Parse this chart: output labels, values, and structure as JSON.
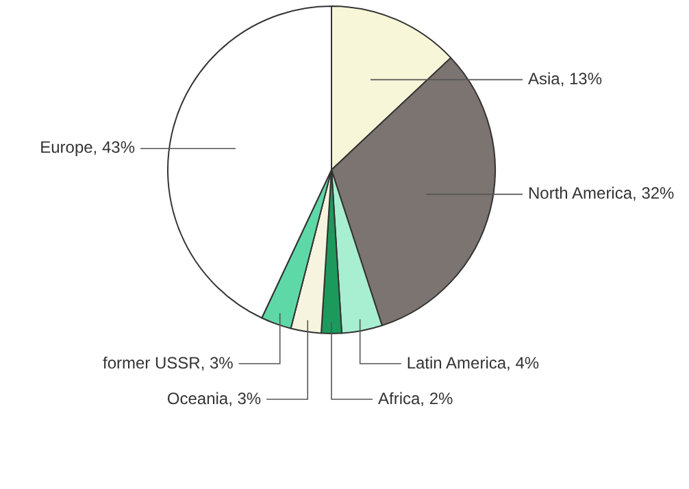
{
  "chart_data": {
    "type": "pie",
    "categories": [
      "Asia, 13%",
      "North America, 32%",
      "Latin America, 4%",
      "Africa, 2%",
      "Oceania, 3%",
      "former USSR, 3%",
      "Europe, 43%"
    ],
    "values": [
      13,
      32,
      4,
      2,
      3,
      3,
      43
    ],
    "colors": [
      "#f8f6d8",
      "#7b7470",
      "#a8efd2",
      "#1c9a5c",
      "#f6f4de",
      "#5fd8a8",
      "#ffffff"
    ],
    "legend": false
  }
}
